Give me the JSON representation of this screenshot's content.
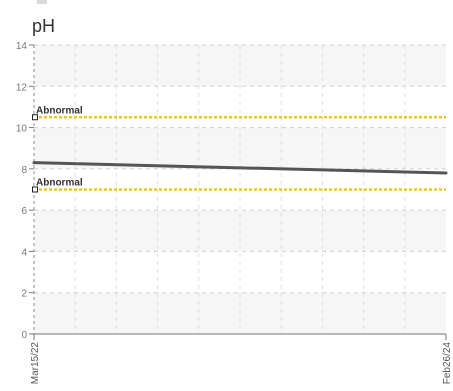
{
  "chart_data": {
    "type": "line",
    "title": "pH",
    "xlabel": "",
    "ylabel": "",
    "ylim": [
      0,
      14
    ],
    "y_ticks": [
      "0",
      "2",
      "4",
      "6",
      "8",
      "10",
      "12",
      "14"
    ],
    "x_ticks": [
      "Mar15/22",
      "Feb26/24"
    ],
    "grid": true,
    "series": [
      {
        "x": [
          "Mar15/22",
          "Feb26/24"
        ],
        "values": [
          8.3,
          7.8
        ]
      }
    ],
    "reference_lines": [
      {
        "label": "Abnormal",
        "value": 10.5,
        "color": "#f2c200"
      },
      {
        "label": "Abnormal",
        "value": 7.0,
        "color": "#f2c200"
      }
    ],
    "line_color": "#555555"
  }
}
